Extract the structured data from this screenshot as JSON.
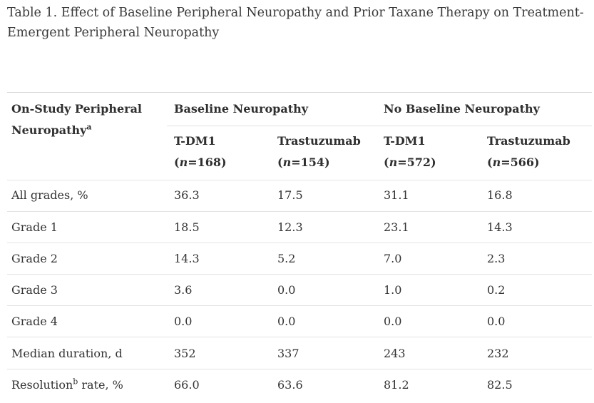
{
  "caption": "Table 1. Effect of Baseline Peripheral Neuropathy and Prior Taxane Therapy on Treatment-Emergent Peripheral Neuropathy",
  "header": {
    "row_label_line1": "On-Study Peripheral",
    "row_label_line2": "Neuropathy",
    "row_label_sup": "a",
    "group1": "Baseline Neuropathy",
    "group2": "No Baseline Neuropathy",
    "columns": [
      {
        "name": "T-DM1",
        "n_prefix": "n",
        "n_value": "=168"
      },
      {
        "name": "Trastuzumab",
        "n_prefix": "n",
        "n_value": "=154"
      },
      {
        "name": "T-DM1",
        "n_prefix": "n",
        "n_value": "=572"
      },
      {
        "name": "Trastuzumab",
        "n_prefix": "n",
        "n_value": "=566"
      }
    ]
  },
  "rows": [
    {
      "label": "All grades, %",
      "values": [
        "36.3",
        "17.5",
        "31.1",
        "16.8"
      ]
    },
    {
      "label": "Grade 1",
      "values": [
        "18.5",
        "12.3",
        "23.1",
        "14.3"
      ]
    },
    {
      "label": "Grade 2",
      "values": [
        "14.3",
        "5.2",
        "7.0",
        "2.3"
      ]
    },
    {
      "label": "Grade 3",
      "values": [
        "3.6",
        "0.0",
        "1.0",
        "0.2"
      ]
    },
    {
      "label": "Grade 4",
      "values": [
        "0.0",
        "0.0",
        "0.0",
        "0.0"
      ]
    },
    {
      "label": "Median duration, d",
      "values": [
        "352",
        "337",
        "243",
        "232"
      ]
    },
    {
      "label_pre": "Resolution",
      "label_sup": "b",
      "label_post": " rate, %",
      "values": [
        "66.0",
        "63.6",
        "81.2",
        "82.5"
      ]
    }
  ]
}
